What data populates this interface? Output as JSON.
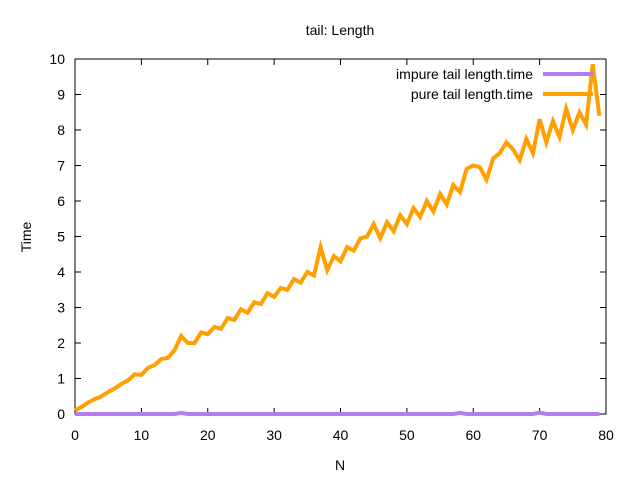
{
  "chart_data": {
    "type": "line",
    "title": "tail: Length",
    "xlabel": "N",
    "ylabel": "Time",
    "xlim": [
      0,
      80
    ],
    "ylim": [
      0,
      10
    ],
    "xticks": [
      "0",
      "10",
      "20",
      "30",
      "40",
      "50",
      "60",
      "70",
      "80"
    ],
    "yticks": [
      "0",
      "1",
      "2",
      "3",
      "4",
      "5",
      "6",
      "7",
      "8",
      "9",
      "10"
    ],
    "grid": false,
    "legend_position": "top-right",
    "x": [
      0,
      1,
      2,
      3,
      4,
      5,
      6,
      7,
      8,
      9,
      10,
      11,
      12,
      13,
      14,
      15,
      16,
      17,
      18,
      19,
      20,
      21,
      22,
      23,
      24,
      25,
      26,
      27,
      28,
      29,
      30,
      31,
      32,
      33,
      34,
      35,
      36,
      37,
      38,
      39,
      40,
      41,
      42,
      43,
      44,
      45,
      46,
      47,
      48,
      49,
      50,
      51,
      52,
      53,
      54,
      55,
      56,
      57,
      58,
      59,
      60,
      61,
      62,
      63,
      64,
      65,
      66,
      67,
      68,
      69,
      70,
      71,
      72,
      73,
      74,
      75,
      76,
      77,
      78,
      79
    ],
    "series": [
      {
        "name": "impure tail length.time",
        "color": "#b57bf0",
        "values": [
          0,
          0,
          0,
          0,
          0,
          0,
          0,
          0,
          0,
          0,
          0,
          0,
          0,
          0,
          0,
          0,
          0.03,
          0,
          0,
          0,
          0,
          0,
          0,
          0,
          0,
          0,
          0,
          0,
          0,
          0,
          0,
          0,
          0,
          0,
          0,
          0,
          0,
          0,
          0,
          0,
          0,
          0,
          0,
          0,
          0,
          0,
          0,
          0,
          0,
          0,
          0,
          0,
          0,
          0,
          0,
          0,
          0,
          0,
          0.03,
          0,
          0,
          0,
          0,
          0,
          0,
          0,
          0,
          0,
          0,
          0,
          0.04,
          0,
          0,
          0,
          0,
          0,
          0,
          0,
          0,
          0
        ]
      },
      {
        "name": "pure tail length.time",
        "color": "#ffa000",
        "values": [
          0.1,
          0.2,
          0.33,
          0.42,
          0.5,
          0.62,
          0.72,
          0.85,
          0.95,
          1.12,
          1.1,
          1.3,
          1.38,
          1.55,
          1.58,
          1.8,
          2.2,
          2.0,
          2.0,
          2.3,
          2.25,
          2.45,
          2.4,
          2.7,
          2.65,
          2.95,
          2.85,
          3.15,
          3.1,
          3.4,
          3.3,
          3.55,
          3.5,
          3.8,
          3.7,
          4.0,
          3.9,
          4.7,
          4.05,
          4.45,
          4.3,
          4.7,
          4.6,
          4.95,
          5.0,
          5.35,
          4.95,
          5.4,
          5.15,
          5.6,
          5.35,
          5.8,
          5.55,
          6.0,
          5.7,
          6.2,
          5.9,
          6.45,
          6.25,
          6.9,
          7.0,
          6.95,
          6.6,
          7.2,
          7.35,
          7.65,
          7.45,
          7.15,
          7.75,
          7.35,
          8.3,
          7.65,
          8.25,
          7.8,
          8.6,
          8.0,
          8.5,
          8.15,
          9.85,
          8.4
        ]
      }
    ]
  }
}
